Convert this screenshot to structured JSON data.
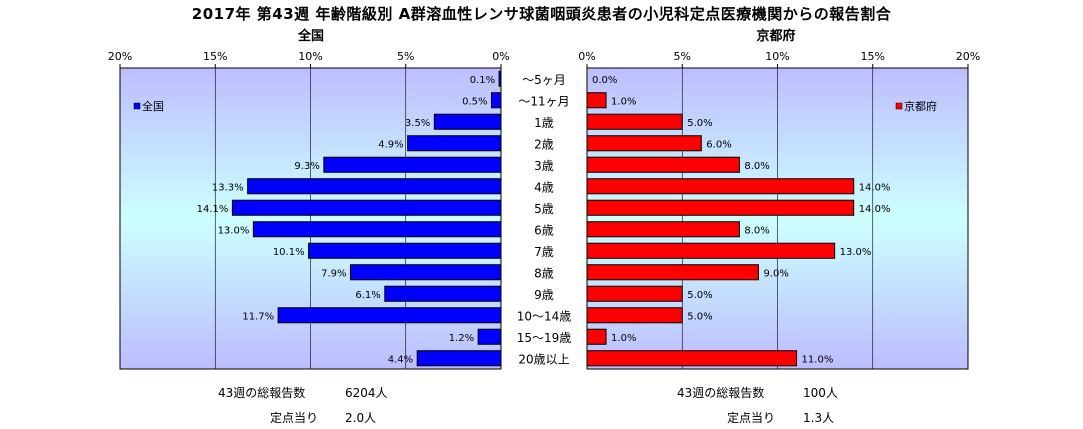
{
  "title": "2017年 第43週 年齢階級別 A群溶血性レンサ球菌咽頭炎患者の小児科定点医療機関からの報告割合",
  "colors": {
    "national": "#0000ff",
    "kyoto": "#ff0000",
    "plot_bg_top": "#bdbdff",
    "plot_bg_mid": "#ccffff"
  },
  "chart_data": [
    {
      "type": "bar",
      "title": "全国",
      "categories": [
        "～5ヶ月",
        "～11ヶ月",
        "1歳",
        "2歳",
        "3歳",
        "4歳",
        "5歳",
        "6歳",
        "7歳",
        "8歳",
        "9歳",
        "10～14歳",
        "15～19歳",
        "20歳以上"
      ],
      "values": [
        0.1,
        0.5,
        3.5,
        4.9,
        9.3,
        13.3,
        14.1,
        13.0,
        10.1,
        7.9,
        6.1,
        11.7,
        1.2,
        4.4
      ],
      "value_labels": [
        "0.1%",
        "0.5%",
        "3.5%",
        "4.9%",
        "9.3%",
        "13.3%",
        "14.1%",
        "13.0%",
        "10.1%",
        "7.9%",
        "6.1%",
        "11.7%",
        "1.2%",
        "4.4%"
      ],
      "series_name": "全国",
      "xlim": [
        0,
        20
      ],
      "xticks": [
        "20%",
        "15%",
        "10%",
        "5%",
        "0%"
      ],
      "direction": "reversed",
      "legend": "top-left",
      "grid": true
    },
    {
      "type": "bar",
      "title": "京都府",
      "categories": [
        "～5ヶ月",
        "～11ヶ月",
        "1歳",
        "2歳",
        "3歳",
        "4歳",
        "5歳",
        "6歳",
        "7歳",
        "8歳",
        "9歳",
        "10～14歳",
        "15～19歳",
        "20歳以上"
      ],
      "values": [
        0.0,
        1.0,
        5.0,
        6.0,
        8.0,
        14.0,
        14.0,
        8.0,
        13.0,
        9.0,
        5.0,
        5.0,
        1.0,
        11.0
      ],
      "value_labels": [
        "0.0%",
        "1.0%",
        "5.0%",
        "6.0%",
        "8.0%",
        "14.0%",
        "14.0%",
        "8.0%",
        "13.0%",
        "9.0%",
        "5.0%",
        "5.0%",
        "1.0%",
        "11.0%"
      ],
      "series_name": "京都府",
      "xlim": [
        0,
        20
      ],
      "xticks": [
        "0%",
        "5%",
        "10%",
        "15%",
        "20%"
      ],
      "direction": "normal",
      "legend": "top-right",
      "grid": true
    }
  ],
  "footer": {
    "national_total_label": "43週の総報告数",
    "national_total_value": "6204人",
    "national_per_label": "定点当り",
    "national_per_value": "2.0人",
    "kyoto_total_label": "43週の総報告数",
    "kyoto_total_value": "100人",
    "kyoto_per_label": "定点当り",
    "kyoto_per_value": "1.3人"
  }
}
